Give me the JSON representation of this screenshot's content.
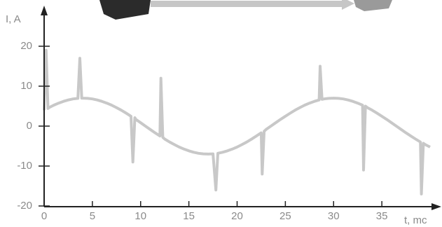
{
  "chart_data": {
    "type": "line",
    "x_label": "t, mc",
    "y_label": "I, A",
    "x": [
      0,
      0.2,
      0.4,
      0.5,
      1,
      1.5,
      2,
      2.5,
      3,
      3.5,
      3.7,
      3.9,
      4,
      4.5,
      5,
      5.5,
      6,
      6.5,
      7,
      7.5,
      8,
      8.5,
      9,
      9.2,
      9.4,
      9.5,
      10,
      10.5,
      11,
      11.5,
      12,
      12.1,
      12.3,
      12.5,
      13,
      13.5,
      14,
      14.5,
      15,
      15.5,
      16,
      16.5,
      17,
      17.5,
      17.8,
      18,
      18.5,
      19,
      19.5,
      20,
      20.5,
      21,
      21.5,
      22,
      22.5,
      22.6,
      22.8,
      23,
      23.5,
      24,
      24.5,
      25,
      25.5,
      26,
      26.5,
      27,
      27.5,
      28,
      28.5,
      28.6,
      28.8,
      29,
      29.5,
      30,
      30.5,
      31,
      31.5,
      32,
      32.5,
      33,
      33.1,
      33.3,
      33.5,
      34,
      34.5,
      35,
      35.5,
      36,
      36.5,
      37,
      37.5,
      38,
      38.5,
      39,
      39.1,
      39.3,
      39.5,
      40
    ],
    "series": [
      {
        "color": "#c8c8c8",
        "values": [
          3.98,
          19,
          4.4,
          4.64,
          5.24,
          5.76,
          6.2,
          6.55,
          6.8,
          6.95,
          17,
          7,
          7,
          6.95,
          6.8,
          6.55,
          6.2,
          5.76,
          5.24,
          4.64,
          3.98,
          3.25,
          2.48,
          -9,
          2.1,
          1.68,
          0.84,
          0,
          -0.84,
          -1.68,
          -2.48,
          12,
          -2.8,
          -3.25,
          -3.98,
          -4.64,
          -5.24,
          -5.76,
          -6.2,
          -6.55,
          -6.8,
          -6.95,
          -7,
          -6.95,
          -16,
          -6.8,
          -6.55,
          -6.2,
          -5.76,
          -5.24,
          -4.64,
          -3.98,
          -3.25,
          -2.48,
          -1.68,
          -12,
          -1.3,
          -0.84,
          0,
          0.84,
          1.68,
          2.48,
          3.25,
          3.98,
          4.64,
          5.24,
          5.76,
          6.2,
          6.55,
          15,
          6.7,
          6.8,
          6.95,
          7,
          6.95,
          6.8,
          6.55,
          6.2,
          5.76,
          5.24,
          -11,
          5,
          4.64,
          3.98,
          3.25,
          2.48,
          1.68,
          0.84,
          0,
          -0.84,
          -1.68,
          -2.48,
          -3.25,
          -3.98,
          -17,
          -4.3,
          -4.64,
          -5.24
        ]
      }
    ],
    "xlim": [
      0,
      40
    ],
    "ylim": [
      -20,
      20
    ],
    "xticks": [
      0,
      5,
      10,
      15,
      20,
      25,
      30,
      35
    ],
    "yticks": [
      -20,
      -10,
      0,
      10,
      20
    ]
  }
}
